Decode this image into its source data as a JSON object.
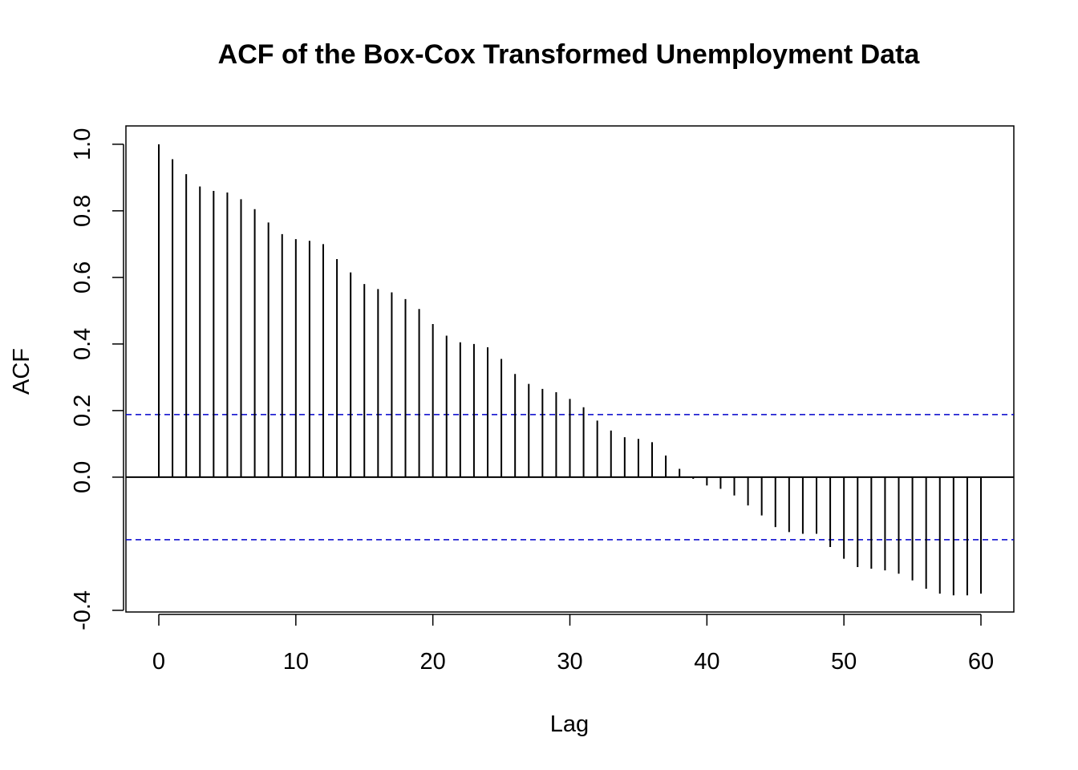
{
  "chart_data": {
    "type": "bar",
    "subtype": "acf-stem",
    "title": "ACF of the Box-Cox Transformed Unemployment Data",
    "xlabel": "Lag",
    "ylabel": "ACF",
    "xlim": [
      -2.4,
      62.4
    ],
    "ylim": [
      -0.405,
      1.055
    ],
    "x_ticks": [
      0,
      10,
      20,
      30,
      40,
      50,
      60
    ],
    "x_tick_labels": [
      "0",
      "10",
      "20",
      "30",
      "40",
      "50",
      "60"
    ],
    "y_ticks": [
      -0.4,
      0.0,
      0.2,
      0.4,
      0.6,
      0.8,
      1.0
    ],
    "y_tick_labels": [
      "-0.4",
      "0.0",
      "0.2",
      "0.4",
      "0.6",
      "0.8",
      "1.0"
    ],
    "confidence_bound": 0.188,
    "confidence_color": "#0000CC",
    "grid": false,
    "lags": [
      0,
      1,
      2,
      3,
      4,
      5,
      6,
      7,
      8,
      9,
      10,
      11,
      12,
      13,
      14,
      15,
      16,
      17,
      18,
      19,
      20,
      21,
      22,
      23,
      24,
      25,
      26,
      27,
      28,
      29,
      30,
      31,
      32,
      33,
      34,
      35,
      36,
      37,
      38,
      39,
      40,
      41,
      42,
      43,
      44,
      45,
      46,
      47,
      48,
      49,
      50,
      51,
      52,
      53,
      54,
      55,
      56,
      57,
      58,
      59,
      60
    ],
    "values": [
      1.0,
      0.955,
      0.91,
      0.873,
      0.86,
      0.855,
      0.835,
      0.805,
      0.765,
      0.73,
      0.715,
      0.71,
      0.7,
      0.655,
      0.615,
      0.58,
      0.565,
      0.555,
      0.535,
      0.505,
      0.46,
      0.425,
      0.405,
      0.4,
      0.39,
      0.355,
      0.31,
      0.28,
      0.265,
      0.255,
      0.235,
      0.21,
      0.17,
      0.14,
      0.12,
      0.115,
      0.105,
      0.065,
      0.025,
      -0.005,
      -0.025,
      -0.035,
      -0.055,
      -0.085,
      -0.115,
      -0.15,
      -0.165,
      -0.17,
      -0.17,
      -0.21,
      -0.245,
      -0.27,
      -0.275,
      -0.28,
      -0.29,
      -0.31,
      -0.335,
      -0.35,
      -0.355,
      -0.355,
      -0.35
    ]
  }
}
